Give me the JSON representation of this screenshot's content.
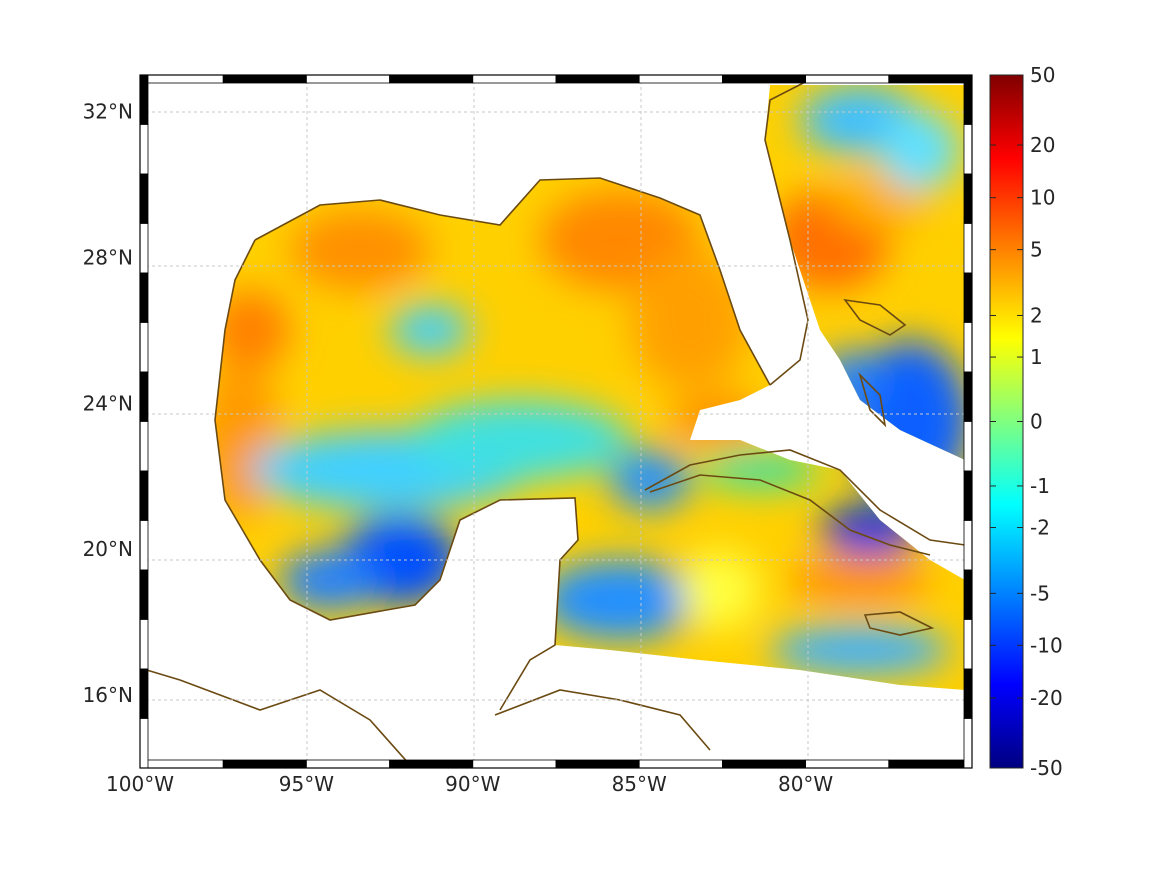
{
  "map": {
    "region": "Gulf of Mexico and western Caribbean",
    "lon_range": [
      -100,
      -75
    ],
    "lat_range": [
      14,
      33
    ],
    "grid": true,
    "frame_style": "alternating black and white border",
    "coastline_color": "#6b4a12",
    "colormap": "jet",
    "lon_ticks": [
      {
        "value": -100,
        "label": "100°W"
      },
      {
        "value": -95,
        "label": "95°W"
      },
      {
        "value": -90,
        "label": "90°W"
      },
      {
        "value": -85,
        "label": "85°W"
      },
      {
        "value": -80,
        "label": "80°W"
      }
    ],
    "lat_ticks": [
      {
        "value": 32,
        "label": "32°N"
      },
      {
        "value": 28,
        "label": "28°N"
      },
      {
        "value": 24,
        "label": "24°N"
      },
      {
        "value": 20,
        "label": "20°N"
      },
      {
        "value": 16,
        "label": "16°N"
      }
    ]
  },
  "colorbar": {
    "ticks": [
      {
        "label": "50"
      },
      {
        "label": "20"
      },
      {
        "label": "10"
      },
      {
        "label": "5"
      },
      {
        "label": "2"
      },
      {
        "label": "1"
      },
      {
        "label": "0"
      },
      {
        "label": "-1"
      },
      {
        "label": "-2"
      },
      {
        "label": "-5"
      },
      {
        "label": "-10"
      },
      {
        "label": "-20"
      },
      {
        "label": "-50"
      }
    ],
    "tick_fraction_from_top": [
      0,
      0.101,
      0.177,
      0.252,
      0.347,
      0.407,
      0.5,
      0.593,
      0.653,
      0.748,
      0.823,
      0.899,
      1
    ],
    "colors_top_to_bottom": [
      "#800000",
      "#ff0000",
      "#ff8000",
      "#ffff00",
      "#80ff80",
      "#00ffff",
      "#0080ff",
      "#0000ff",
      "#000080"
    ]
  }
}
